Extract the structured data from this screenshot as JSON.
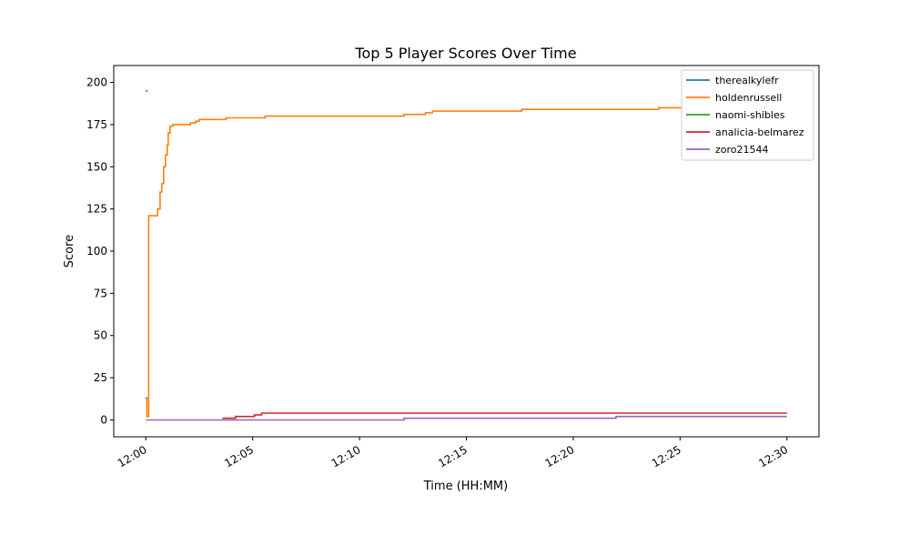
{
  "chart_data": {
    "type": "line",
    "title": "Top 5 Player Scores Over Time",
    "xlabel": "Time (HH:MM)",
    "ylabel": "Score",
    "xlim": [
      "11:58:30",
      "12:31:30"
    ],
    "ylim": [
      -10,
      210
    ],
    "x_ticks": [
      "12:00",
      "12:05",
      "12:10",
      "12:15",
      "12:20",
      "12:25",
      "12:30"
    ],
    "y_ticks": [
      0,
      25,
      50,
      75,
      100,
      125,
      150,
      175,
      200
    ],
    "step": true,
    "grid": false,
    "legend_position": "top-right",
    "series": [
      {
        "name": "therealkylefr",
        "color": "#1f77b4",
        "points": [
          [
            "12:00:00",
            195
          ],
          [
            "12:00:05",
            195
          ]
        ]
      },
      {
        "name": "holdenrussell",
        "color": "#ff7f0e",
        "points": [
          [
            "12:00:00",
            13
          ],
          [
            "12:00:03",
            2
          ],
          [
            "12:00:08",
            121
          ],
          [
            "12:00:30",
            121
          ],
          [
            "12:00:33",
            125
          ],
          [
            "12:00:40",
            135
          ],
          [
            "12:00:45",
            140
          ],
          [
            "12:00:50",
            150
          ],
          [
            "12:00:55",
            157
          ],
          [
            "12:01:00",
            163
          ],
          [
            "12:01:03",
            170
          ],
          [
            "12:01:08",
            174
          ],
          [
            "12:01:15",
            175
          ],
          [
            "12:02:00",
            175
          ],
          [
            "12:02:05",
            176
          ],
          [
            "12:02:20",
            177
          ],
          [
            "12:02:30",
            178
          ],
          [
            "12:03:40",
            178
          ],
          [
            "12:03:45",
            179
          ],
          [
            "12:05:30",
            179
          ],
          [
            "12:05:35",
            180
          ],
          [
            "12:12:00",
            180
          ],
          [
            "12:12:05",
            181
          ],
          [
            "12:13:00",
            181
          ],
          [
            "12:13:05",
            182
          ],
          [
            "12:13:20",
            182
          ],
          [
            "12:13:25",
            183
          ],
          [
            "12:17:30",
            183
          ],
          [
            "12:17:35",
            184
          ],
          [
            "12:23:55",
            184
          ],
          [
            "12:24:00",
            185
          ],
          [
            "12:25:05",
            185
          ]
        ]
      },
      {
        "name": "naomi-shibles",
        "color": "#2ca02c",
        "points": [
          [
            "12:00:00",
            13
          ],
          [
            "12:00:05",
            13
          ]
        ]
      },
      {
        "name": "analicia-belmarez",
        "color": "#d62728",
        "points": [
          [
            "12:03:35",
            1
          ],
          [
            "12:04:10",
            1
          ],
          [
            "12:04:12",
            2
          ],
          [
            "12:05:00",
            2
          ],
          [
            "12:05:05",
            3
          ],
          [
            "12:05:20",
            3
          ],
          [
            "12:05:25",
            4
          ],
          [
            "12:30:00",
            4
          ]
        ]
      },
      {
        "name": "zoro21544",
        "color": "#9467bd",
        "points": [
          [
            "12:00:00",
            0
          ],
          [
            "12:12:00",
            0
          ],
          [
            "12:12:05",
            1
          ],
          [
            "12:21:55",
            1
          ],
          [
            "12:22:00",
            2
          ],
          [
            "12:30:00",
            2
          ]
        ]
      }
    ]
  }
}
